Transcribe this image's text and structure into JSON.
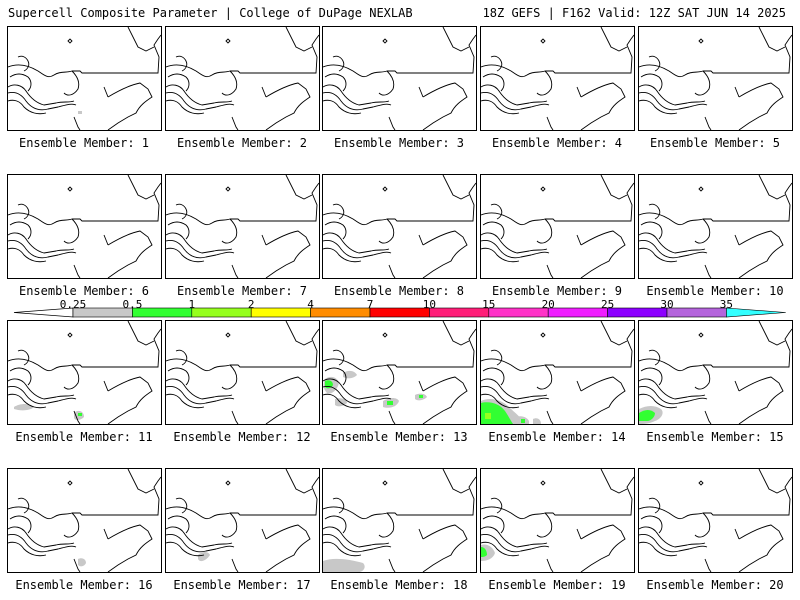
{
  "header": {
    "title": "Supercell Composite Parameter | College of DuPage NEXLAB",
    "run_info": "18Z GEFS | F162 Valid: 12Z SAT JUN 14 2025"
  },
  "member_caption_prefix": "Ensemble Member:",
  "members": [
    {
      "id": "1",
      "shading": [
        {
          "level": "0.25-0.5",
          "area": "tiny speck south"
        }
      ]
    },
    {
      "id": "2",
      "shading": []
    },
    {
      "id": "3",
      "shading": []
    },
    {
      "id": "4",
      "shading": []
    },
    {
      "id": "5",
      "shading": []
    },
    {
      "id": "6",
      "shading": []
    },
    {
      "id": "7",
      "shading": []
    },
    {
      "id": "8",
      "shading": []
    },
    {
      "id": "9",
      "shading": []
    },
    {
      "id": "10",
      "shading": []
    },
    {
      "id": "11",
      "shading": [
        {
          "level": "0.25-0.5",
          "area": "southwest"
        },
        {
          "level": "0.5-1",
          "area": "mid-atlantic speck"
        }
      ]
    },
    {
      "id": "12",
      "shading": []
    },
    {
      "id": "13",
      "shading": [
        {
          "level": "0.25-0.5",
          "area": "great lakes, appalachians"
        },
        {
          "level": "0.5-1",
          "area": "upper midwest, appalachians"
        }
      ]
    },
    {
      "id": "14",
      "shading": [
        {
          "level": "0.25-0.5",
          "area": "south"
        },
        {
          "level": "0.5-1",
          "area": "southwest"
        },
        {
          "level": "1-2",
          "area": "southwest"
        }
      ]
    },
    {
      "id": "15",
      "shading": [
        {
          "level": "0.25-0.5",
          "area": "southwest"
        },
        {
          "level": "0.5-1",
          "area": "southwest"
        }
      ]
    },
    {
      "id": "16",
      "shading": [
        {
          "level": "0.25-0.5",
          "area": "mid-atlantic speck"
        }
      ]
    },
    {
      "id": "17",
      "shading": [
        {
          "level": "0.25-0.5",
          "area": "southwest"
        }
      ]
    },
    {
      "id": "18",
      "shading": [
        {
          "level": "0.25-0.5",
          "area": "south"
        }
      ]
    },
    {
      "id": "19",
      "shading": [
        {
          "level": "0.25-0.5",
          "area": "southwest"
        },
        {
          "level": "0.5-1",
          "area": "southwest"
        }
      ]
    },
    {
      "id": "20",
      "shading": []
    }
  ],
  "colorbar": {
    "labels": [
      "0.25",
      "0.5",
      "1",
      "2",
      "4",
      "7",
      "10",
      "15",
      "20",
      "25",
      "30",
      "35"
    ],
    "colors": [
      "#c8c8c8",
      "#32ff32",
      "#96ff1e",
      "#ffff00",
      "#ff8c00",
      "#ff0000",
      "#ff1e78",
      "#ff32c8",
      "#f01eff",
      "#8c00ff",
      "#b464dc",
      "#32ffff"
    ],
    "below_color": "#ffffff"
  }
}
